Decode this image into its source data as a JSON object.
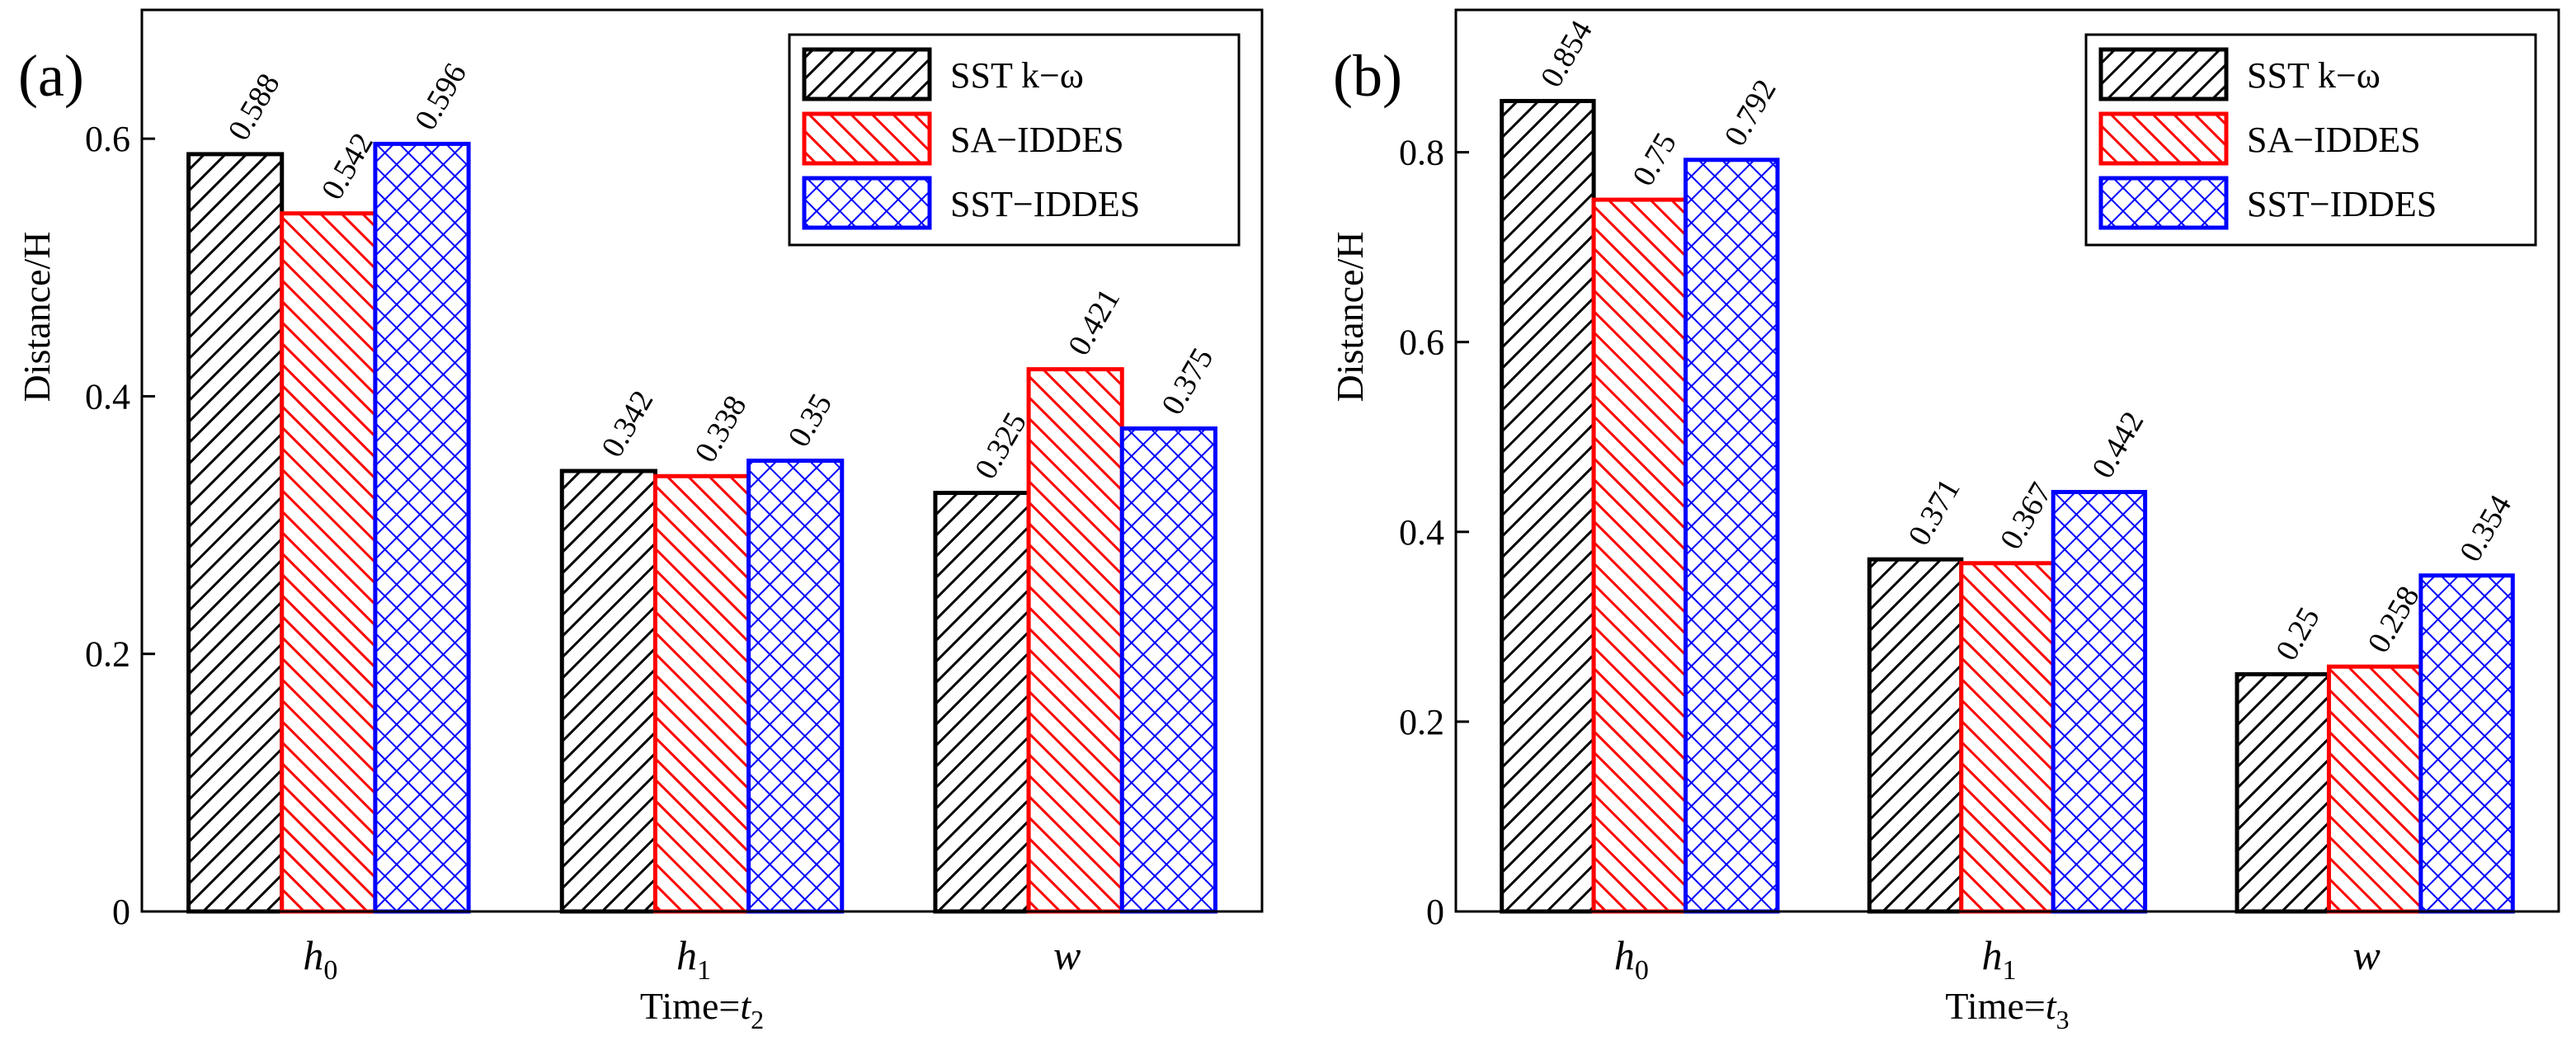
{
  "legend": [
    "SST k−ω",
    "SA−IDDES",
    "SST−IDDES"
  ],
  "colors": {
    "series_0": "#000000",
    "series_1": "#ff0000",
    "series_2": "#0000ff"
  },
  "chart_data": [
    {
      "type": "bar",
      "panel_label": "(a)",
      "categories": [
        {
          "main": "h",
          "sub": "0"
        },
        {
          "main": "h",
          "sub": "1"
        },
        {
          "main": "w",
          "sub": ""
        }
      ],
      "series": [
        {
          "name": "SST k−ω",
          "values": [
            0.588,
            0.342,
            0.325
          ],
          "labels": [
            "0.588",
            "0.342",
            "0.325"
          ]
        },
        {
          "name": "SA−IDDES",
          "values": [
            0.542,
            0.338,
            0.421
          ],
          "labels": [
            "0.542",
            "0.338",
            "0.421"
          ]
        },
        {
          "name": "SST−IDDES",
          "values": [
            0.596,
            0.35,
            0.375
          ],
          "labels": [
            "0.596",
            "0.35",
            "0.375"
          ]
        }
      ],
      "xlabel": {
        "main": "Time=",
        "var": "t",
        "sub": "2"
      },
      "ylabel": "Distance/H",
      "ylim": [
        0,
        0.7
      ],
      "yticks": [
        0,
        0.2,
        0.4,
        0.6
      ],
      "ytick_labels": [
        "0",
        "0.2",
        "0.4",
        "0.6"
      ],
      "legend_position": "top-right",
      "grid": false
    },
    {
      "type": "bar",
      "panel_label": "(b)",
      "categories": [
        {
          "main": "h",
          "sub": "0"
        },
        {
          "main": "h",
          "sub": "1"
        },
        {
          "main": "w",
          "sub": ""
        }
      ],
      "series": [
        {
          "name": "SST k−ω",
          "values": [
            0.854,
            0.371,
            0.25
          ],
          "labels": [
            "0.854",
            "0.371",
            "0.25"
          ]
        },
        {
          "name": "SA−IDDES",
          "values": [
            0.75,
            0.367,
            0.258
          ],
          "labels": [
            "0.75",
            "0.367",
            "0.258"
          ]
        },
        {
          "name": "SST−IDDES",
          "values": [
            0.792,
            0.442,
            0.354
          ],
          "labels": [
            "0.792",
            "0.442",
            "0.354"
          ]
        }
      ],
      "xlabel": {
        "main": "Time=",
        "var": "t",
        "sub": "3"
      },
      "ylabel": "Distance/H",
      "ylim": [
        0,
        0.95
      ],
      "yticks": [
        0,
        0.2,
        0.4,
        0.6,
        0.8
      ],
      "ytick_labels": [
        "0",
        "0.2",
        "0.4",
        "0.6",
        "0.8"
      ],
      "legend_position": "top-right",
      "grid": false
    }
  ]
}
